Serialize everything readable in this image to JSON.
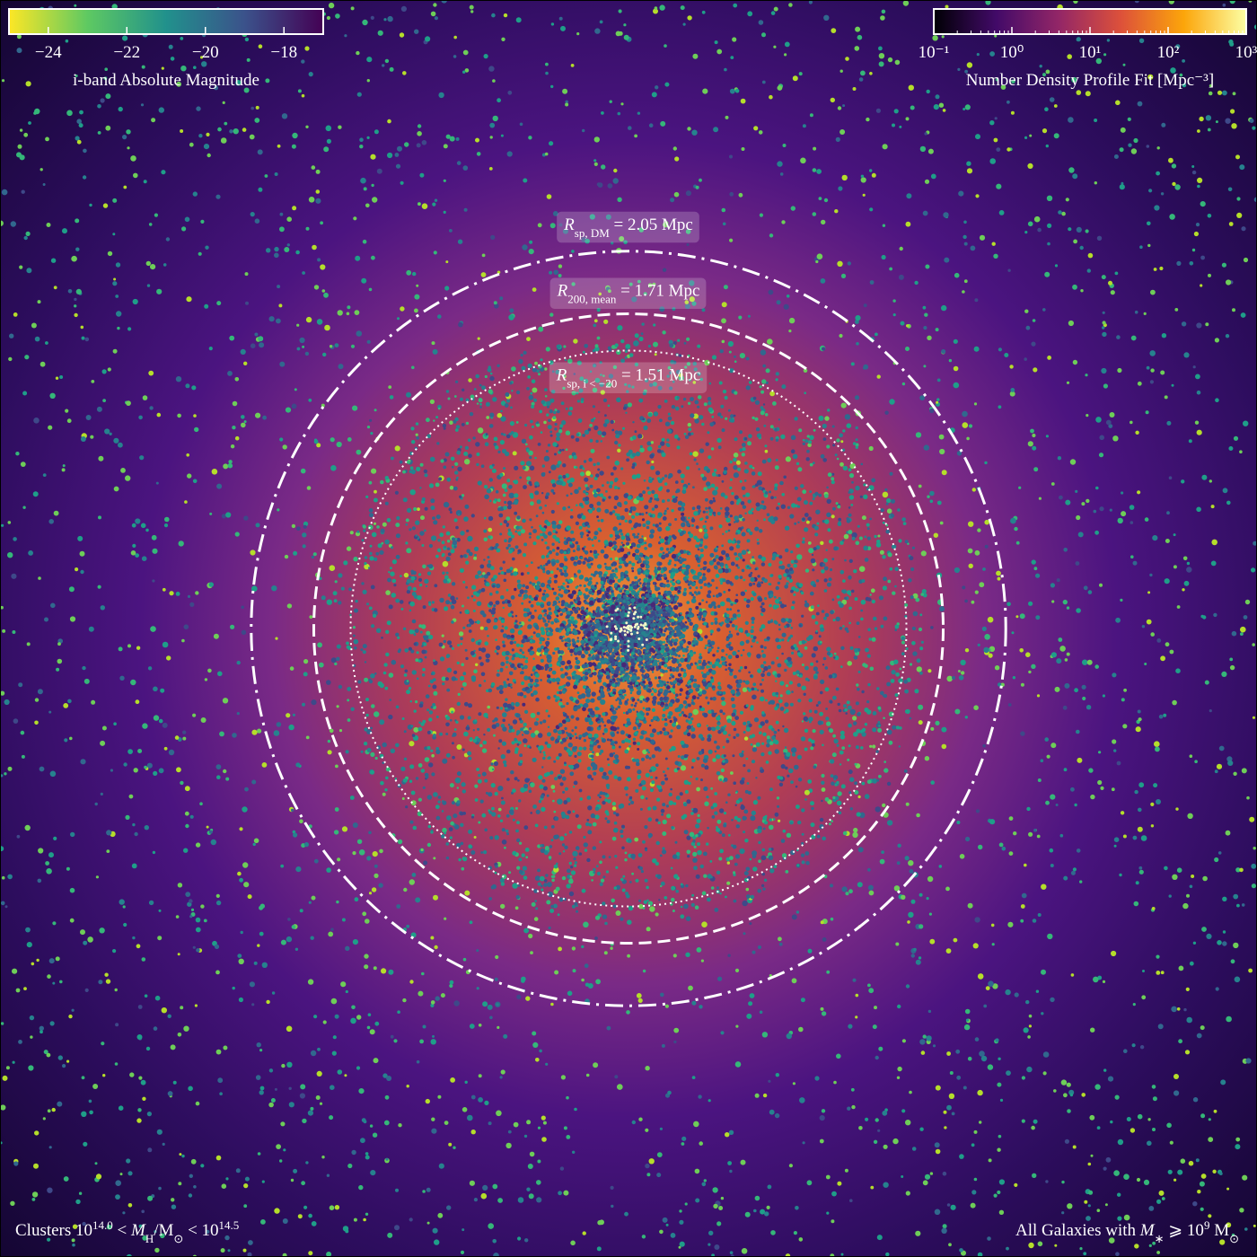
{
  "chart_data": {
    "type": "sky-map",
    "xlim": [
      -3.415,
      3.415
    ],
    "circles": [
      {
        "radius": 2.05,
        "style": "dashdot",
        "label": [
          {
            "text": "R",
            "style": "italic"
          },
          {
            "text": "sp, DM",
            "style": "sub"
          },
          {
            "text": " = 2.05 Mpc"
          }
        ]
      },
      {
        "radius": 1.71,
        "style": "dashed",
        "label": [
          {
            "text": "R",
            "style": "italic"
          },
          {
            "text": "200, mean",
            "style": "sub"
          },
          {
            "text": " = 1.71 Mpc"
          }
        ]
      },
      {
        "radius": 1.51,
        "style": "dotted",
        "label": [
          {
            "text": "R",
            "style": "italic"
          },
          {
            "text": "sp, i < −20",
            "style": "sub"
          },
          {
            "text": " = 1.51 Mpc"
          }
        ]
      }
    ],
    "colorbars": [
      {
        "label": "i-band Absolute Magnitude",
        "scale": "linear",
        "lim": [
          -25,
          -17
        ],
        "colors": [
          "#fde725",
          "#5ec962",
          "#21918c",
          "#3b528b",
          "#440154"
        ],
        "ticks": [
          {
            "value": -24,
            "label": "−24"
          },
          {
            "value": -22,
            "label": "−22"
          },
          {
            "value": -20,
            "label": "−20"
          },
          {
            "value": -18,
            "label": "−18"
          }
        ],
        "corner": "upper left"
      },
      {
        "label": "Number Density Profile Fit [Mpc⁻³]",
        "scale": "log",
        "lim": [
          0.1,
          1000
        ],
        "colors": [
          "#000004",
          "#420a68",
          "#932667",
          "#dd513a",
          "#fca50a",
          "#fcffa4"
        ],
        "ticks": [
          {
            "value": 0.1,
            "label": "10⁻¹"
          },
          {
            "value": 1,
            "label": "10⁰"
          },
          {
            "value": 10,
            "label": "10¹"
          },
          {
            "value": 100,
            "label": "10²"
          },
          {
            "value": 1000,
            "label": "10³"
          }
        ],
        "corner": "upper right"
      }
    ],
    "annotations": [
      {
        "corner": "lower left",
        "parts": [
          {
            "text": "Clusters 10"
          },
          {
            "text": "14.0",
            "style": "sup"
          },
          {
            "text": " < "
          },
          {
            "text": "M",
            "style": "italic"
          },
          {
            "text": "H",
            "style": "sub"
          },
          {
            "text": "/M"
          },
          {
            "text": "⊙",
            "style": "sub"
          },
          {
            "text": " < 10"
          },
          {
            "text": "14.5",
            "style": "sup"
          }
        ]
      },
      {
        "corner": "lower right",
        "parts": [
          {
            "text": "All Galaxies with "
          },
          {
            "text": "M",
            "style": "italic"
          },
          {
            "text": "∗",
            "style": "sub"
          },
          {
            "text": " ⩾ 10"
          },
          {
            "text": "9",
            "style": "sup"
          },
          {
            "text": " M"
          },
          {
            "text": "⊙",
            "style": "sub"
          }
        ]
      }
    ]
  }
}
